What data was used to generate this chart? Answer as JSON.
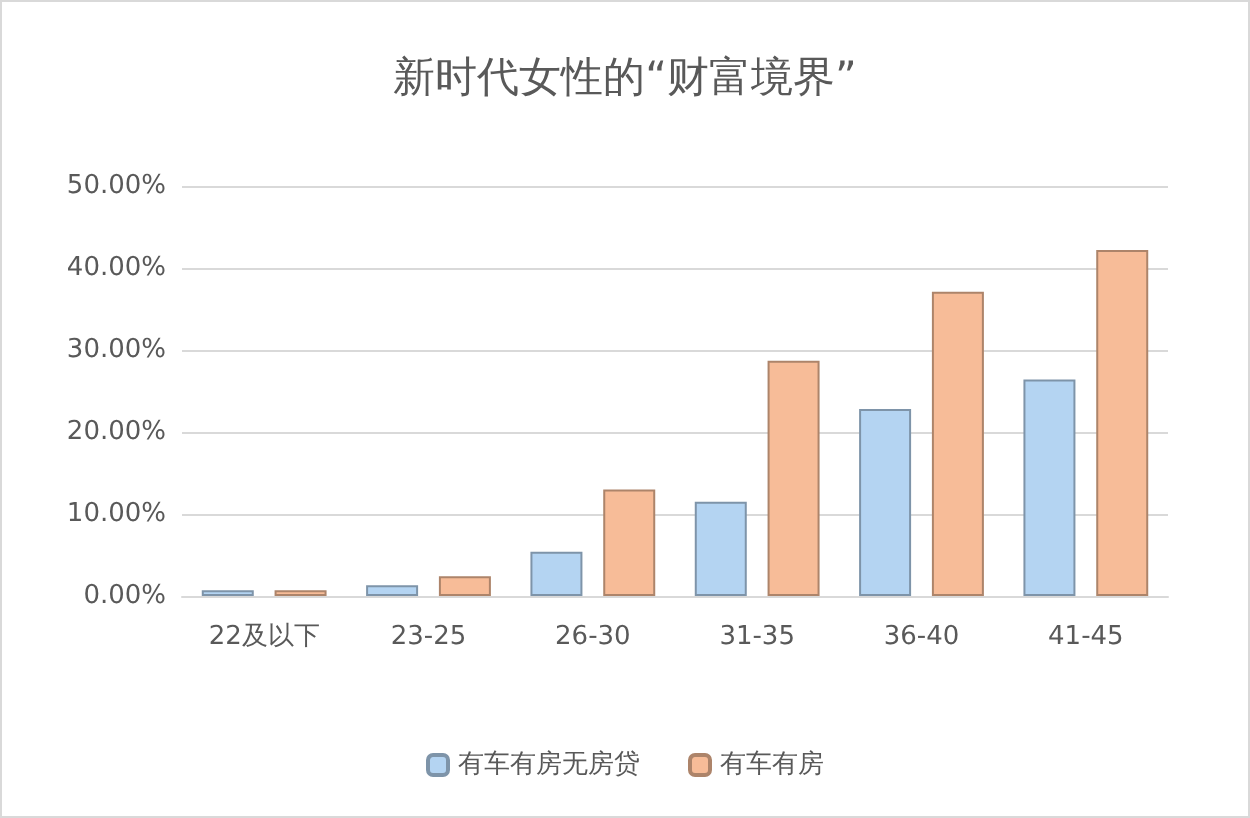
{
  "chart_data": {
    "type": "bar",
    "title": "新时代女性的“财富境界”",
    "categories": [
      "22及以下",
      "23-25",
      "26-30",
      "31-35",
      "36-40",
      "41-45"
    ],
    "series": [
      {
        "name": "有车有房无房贷",
        "color": "#b4d4f2",
        "values": [
          0.7,
          1.3,
          5.4,
          11.5,
          22.8,
          26.4
        ]
      },
      {
        "name": "有车有房",
        "color": "#f7bc98",
        "values": [
          0.7,
          2.4,
          13.0,
          28.7,
          37.1,
          42.2
        ]
      }
    ],
    "ylim": [
      0,
      50
    ],
    "yticks": [
      {
        "value": 0,
        "label": "0.00%"
      },
      {
        "value": 10,
        "label": "10.00%"
      },
      {
        "value": 20,
        "label": "20.00%"
      },
      {
        "value": 30,
        "label": "30.00%"
      },
      {
        "value": 40,
        "label": "40.00%"
      },
      {
        "value": 50,
        "label": "50.00%"
      }
    ],
    "grid": "y",
    "legend": "bottom"
  }
}
